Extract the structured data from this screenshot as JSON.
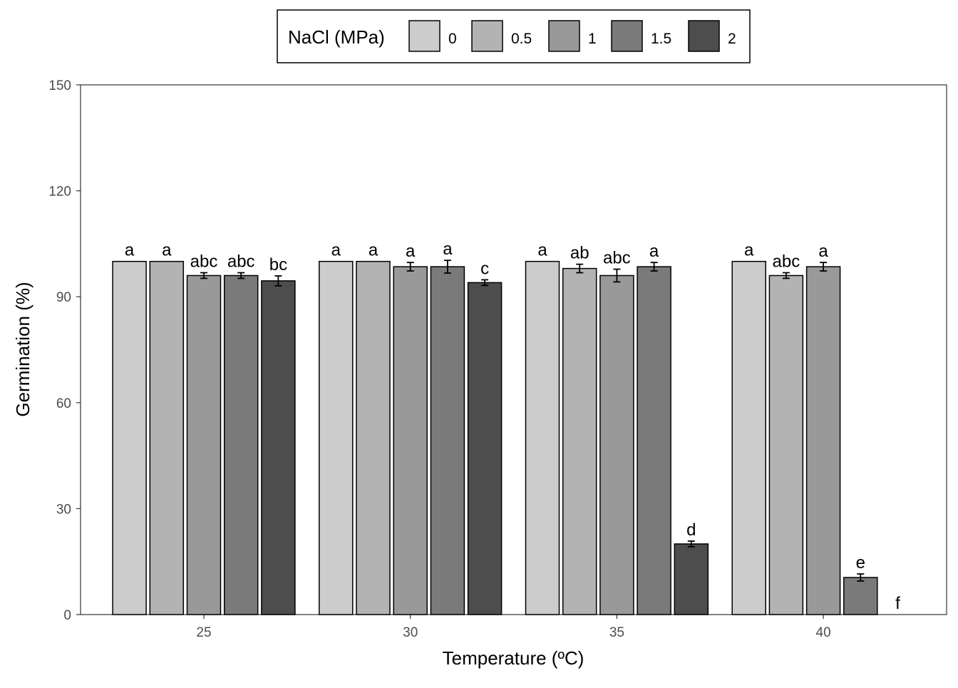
{
  "chart_data": {
    "type": "bar",
    "xlabel": "Temperature (ºC)",
    "ylabel": "Germination (%)",
    "ylim": [
      0,
      150
    ],
    "yticks": [
      0,
      30,
      60,
      90,
      120,
      150
    ],
    "grid": false,
    "legend": {
      "title": "NaCl (MPa)",
      "placement": "top"
    },
    "categories": [
      "25",
      "30",
      "35",
      "40"
    ],
    "series": [
      {
        "name": "0",
        "color": "#cccccc",
        "values": [
          100,
          100,
          100,
          100
        ],
        "errors": [
          0,
          0,
          0,
          0
        ],
        "labels": [
          "a",
          "a",
          "a",
          "a"
        ]
      },
      {
        "name": "0.5",
        "color": "#b3b3b3",
        "values": [
          100,
          100,
          98,
          96
        ],
        "errors": [
          0,
          0,
          1.2,
          0.8
        ],
        "labels": [
          "a",
          "a",
          "ab",
          "abc"
        ]
      },
      {
        "name": "1",
        "color": "#999999",
        "values": [
          96,
          98.5,
          96,
          98.5
        ],
        "errors": [
          0.8,
          1.2,
          1.8,
          1.2
        ],
        "labels": [
          "abc",
          "a",
          "abc",
          "a"
        ]
      },
      {
        "name": "1.5",
        "color": "#7a7a7a",
        "values": [
          96,
          98.5,
          98.5,
          10.5
        ],
        "errors": [
          0.8,
          1.8,
          1.2,
          1.0
        ],
        "labels": [
          "abc",
          "a",
          "a",
          "e"
        ]
      },
      {
        "name": "2",
        "color": "#4d4d4d",
        "values": [
          94.5,
          94,
          20,
          0
        ],
        "errors": [
          1.4,
          0.8,
          0.8,
          0
        ],
        "labels": [
          "bc",
          "c",
          "d",
          "f"
        ]
      }
    ]
  }
}
